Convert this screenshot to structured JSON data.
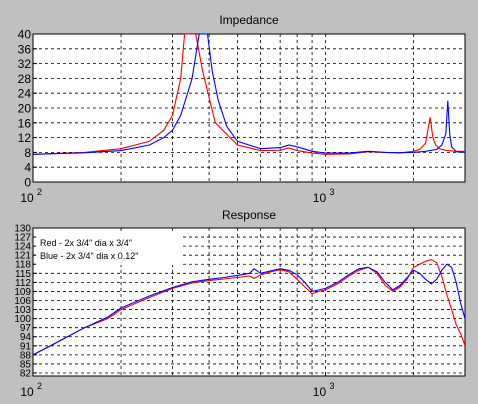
{
  "chart_data": [
    {
      "type": "line",
      "title": "Impedance",
      "xscale": "log",
      "xlim": [
        100,
        3000
      ],
      "ylim": [
        0,
        40
      ],
      "grid": true,
      "x_ticks": [
        100,
        1000
      ],
      "x_tick_labels": [
        "10",
        "10"
      ],
      "x_tick_exponents": [
        "2",
        "3"
      ],
      "y_ticks": [
        0,
        4,
        8,
        12,
        16,
        20,
        24,
        28,
        32,
        36,
        40
      ],
      "y_tick_labels": [
        "0",
        "4",
        "8",
        "12",
        "16",
        "20",
        "24",
        "28",
        "32",
        "36",
        "40"
      ],
      "series": [
        {
          "color": "#ff0000",
          "x": [
            100,
            150,
            200,
            250,
            280,
            300,
            320,
            330,
            340,
            360,
            380,
            420,
            500,
            600,
            700,
            750,
            800,
            900,
            1000,
            1200,
            1400,
            1600,
            1800,
            2000,
            2100,
            2200,
            2280,
            2330,
            2380,
            2450,
            2600,
            2800,
            3000
          ],
          "y": [
            7.5,
            8,
            9,
            11,
            14,
            18,
            28,
            40,
            40,
            40,
            30,
            16,
            10,
            8.5,
            8.6,
            9.2,
            8.5,
            7.8,
            7.5,
            7.6,
            8.2,
            8.0,
            7.9,
            8.3,
            8.8,
            10.5,
            17.5,
            12,
            10,
            9.0,
            8.5,
            8.3,
            8.3
          ]
        },
        {
          "color": "#0000ff",
          "x": [
            100,
            150,
            200,
            250,
            280,
            300,
            320,
            350,
            370,
            380,
            395,
            410,
            430,
            460,
            500,
            600,
            700,
            750,
            800,
            900,
            1000,
            1200,
            1400,
            1600,
            1800,
            2000,
            2200,
            2400,
            2500,
            2580,
            2620,
            2660,
            2700,
            2800,
            3000
          ],
          "y": [
            7.5,
            7.9,
            8.5,
            10,
            12,
            14,
            18,
            28,
            40,
            40,
            40,
            30,
            22,
            15,
            11,
            9,
            9.3,
            10,
            9.5,
            8.3,
            7.8,
            7.8,
            8.3,
            8.0,
            7.9,
            8.0,
            8.3,
            8.8,
            10,
            13,
            22,
            13,
            9.5,
            8.2,
            8.0
          ]
        }
      ]
    },
    {
      "type": "line",
      "title": "Response",
      "xscale": "log",
      "xlim": [
        100,
        3000
      ],
      "ylim": [
        81,
        130
      ],
      "grid": true,
      "x_ticks": [
        100,
        1000
      ],
      "x_tick_labels": [
        "10",
        "10"
      ],
      "x_tick_exponents": [
        "2",
        "3"
      ],
      "y_ticks": [
        82,
        85,
        88,
        91,
        94,
        97,
        100,
        103,
        106,
        109,
        112,
        115,
        118,
        121,
        124,
        127,
        130
      ],
      "y_tick_labels": [
        "82",
        "85",
        "88",
        "91",
        "94",
        "97",
        "100",
        "103",
        "106",
        "109",
        "112",
        "115",
        "118",
        "121",
        "124",
        "127",
        "130"
      ],
      "legend": {
        "placement": "top-left",
        "entries": [
          "Red - 2x 3/4\" dia x 3/4\"",
          "Blue - 2x 3/4\" dia x 0.12\""
        ]
      },
      "series": [
        {
          "color": "#ff0000",
          "x": [
            100,
            120,
            150,
            180,
            200,
            250,
            300,
            350,
            400,
            450,
            500,
            550,
            570,
            600,
            650,
            700,
            750,
            800,
            850,
            900,
            950,
            1000,
            1100,
            1200,
            1300,
            1400,
            1500,
            1600,
            1700,
            1800,
            1900,
            2000,
            2100,
            2200,
            2300,
            2400,
            2500,
            2600,
            2700,
            2800,
            2900,
            3000
          ],
          "y": [
            88,
            92,
            97,
            100,
            103,
            107,
            110,
            111.8,
            112.6,
            113.1,
            113.6,
            114.1,
            113.3,
            114.5,
            115.5,
            116.2,
            115.5,
            113,
            110.5,
            108.2,
            109,
            109.5,
            111.5,
            114,
            116,
            117,
            115,
            111,
            109,
            110.5,
            113,
            117,
            118,
            119,
            119.5,
            118.5,
            114,
            108,
            103,
            98,
            95,
            91
          ]
        },
        {
          "color": "#0000ff",
          "x": [
            100,
            120,
            150,
            180,
            200,
            250,
            300,
            350,
            400,
            450,
            500,
            550,
            570,
            600,
            650,
            700,
            750,
            800,
            850,
            900,
            950,
            1000,
            1100,
            1200,
            1300,
            1400,
            1500,
            1600,
            1700,
            1800,
            1900,
            2000,
            2100,
            2200,
            2300,
            2400,
            2500,
            2600,
            2700,
            2800,
            2900,
            3000
          ],
          "y": [
            88,
            92,
            97,
            100.5,
            103.5,
            107.5,
            110.3,
            112.2,
            113,
            113.6,
            114.3,
            115,
            116.5,
            115,
            115.8,
            116.5,
            116,
            114.5,
            112,
            109,
            109.5,
            110,
            112,
            114.5,
            116.5,
            117,
            115.5,
            112,
            109.5,
            111,
            113.5,
            116,
            115,
            113,
            111.5,
            113,
            116,
            118,
            117,
            112,
            105,
            100
          ]
        }
      ]
    }
  ]
}
